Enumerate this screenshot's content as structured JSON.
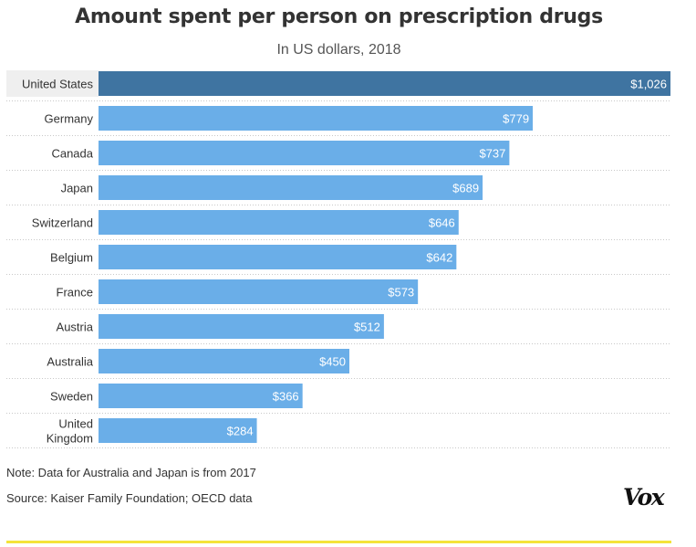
{
  "header": {
    "title": "Amount spent per person on prescription drugs",
    "subtitle": "In US dollars, 2018"
  },
  "footer": {
    "note": "Note: Data for Australia and Japan is from 2017",
    "source": "Source: Kaiser Family Foundation; OECD data",
    "logo": "Vox"
  },
  "colors": {
    "highlight_bar": "#3f74a1",
    "bar": "#6aaee8",
    "accent_rule": "#f4e33a",
    "label_text": "#ffffff"
  },
  "chart_data": {
    "type": "bar",
    "orientation": "horizontal",
    "title": "Amount spent per person on prescription drugs",
    "subtitle": "In US dollars, 2018",
    "categories": [
      "United States",
      "Germany",
      "Canada",
      "Japan",
      "Switzerland",
      "Belgium",
      "France",
      "Austria",
      "Australia",
      "Sweden",
      "United Kingdom"
    ],
    "values": [
      1026,
      779,
      737,
      689,
      646,
      642,
      573,
      512,
      450,
      366,
      284
    ],
    "value_labels": [
      "$1,026",
      "$779",
      "$737",
      "$689",
      "$646",
      "$642",
      "$573",
      "$512",
      "$450",
      "$366",
      "$284"
    ],
    "highlight": "United States",
    "xlim": [
      0,
      1026
    ],
    "grid": false,
    "legend": "none"
  }
}
